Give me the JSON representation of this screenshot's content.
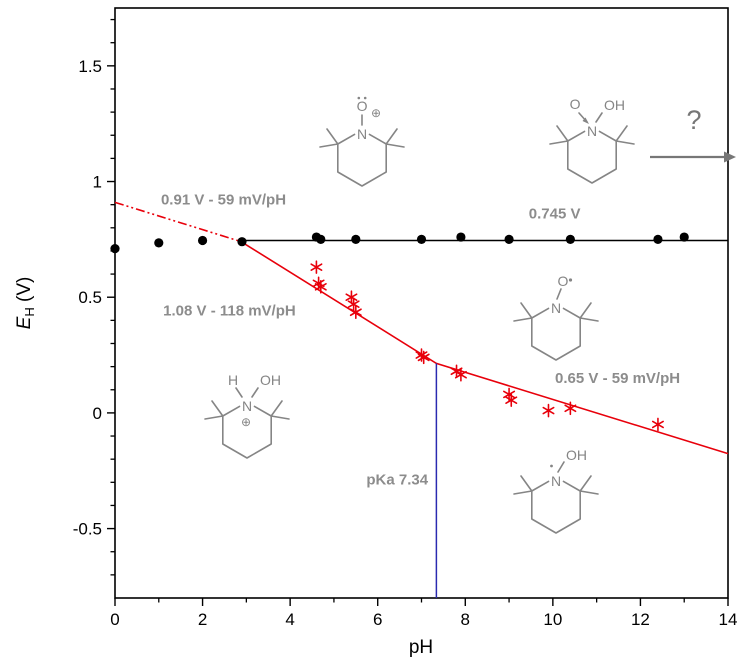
{
  "chart_data": {
    "type": "scatter",
    "title": "",
    "xlabel": "pH",
    "ylabel": "E_H (V)",
    "ylabel_parts": {
      "italic": "E",
      "sub": "H",
      "rest": " (V)"
    },
    "xlim": [
      0,
      14
    ],
    "ylim": [
      -0.8,
      1.75
    ],
    "grid": false,
    "legend": "none",
    "colors": {
      "red": "#e8000b",
      "black": "#000000",
      "blue": "#2a2ab0",
      "gray_text": "#8c8c8c",
      "gray_structure": "#858585"
    },
    "x_ticks": {
      "values": [
        0,
        2,
        4,
        6,
        8,
        10,
        12,
        14
      ],
      "labels": [
        "0",
        "2",
        "4",
        "6",
        "8",
        "10",
        "12",
        "14"
      ],
      "minor_step": 1
    },
    "y_ticks": {
      "values": [
        -0.5,
        0,
        0.5,
        1,
        1.5
      ],
      "labels": [
        "-0.5",
        "0",
        "0.5",
        "1",
        "1.5"
      ],
      "minor_step": 0.1
    },
    "series": [
      {
        "name": "black-circle-points",
        "marker": "circle",
        "color": "#000000",
        "points": [
          [
            0,
            0.71
          ],
          [
            1,
            0.735
          ],
          [
            2,
            0.745
          ],
          [
            2.9,
            0.74
          ],
          [
            4.6,
            0.76
          ],
          [
            4.7,
            0.75
          ],
          [
            5.5,
            0.75
          ],
          [
            7,
            0.75
          ],
          [
            7.9,
            0.76
          ],
          [
            9,
            0.75
          ],
          [
            10.4,
            0.75
          ],
          [
            12.4,
            0.75
          ],
          [
            13,
            0.76
          ]
        ]
      },
      {
        "name": "red-star-points",
        "marker": "star",
        "color": "#e8000b",
        "points": [
          [
            4.6,
            0.63
          ],
          [
            4.65,
            0.56
          ],
          [
            4.7,
            0.545
          ],
          [
            5.4,
            0.5
          ],
          [
            5.45,
            0.47
          ],
          [
            5.5,
            0.435
          ],
          [
            7.0,
            0.25
          ],
          [
            7.05,
            0.24
          ],
          [
            7.8,
            0.18
          ],
          [
            7.9,
            0.165
          ],
          [
            9.0,
            0.08
          ],
          [
            9.05,
            0.055
          ],
          [
            9.9,
            0.01
          ],
          [
            10.4,
            0.02
          ],
          [
            12.4,
            -0.05
          ]
        ]
      }
    ],
    "lines": [
      {
        "name": "black-plateau-line",
        "color": "#000000",
        "width": 1.5,
        "dash": "",
        "points": [
          [
            2.8,
            0.745
          ],
          [
            14,
            0.745
          ]
        ]
      },
      {
        "name": "red-dash-dot-line",
        "color": "#e8000b",
        "width": 1.6,
        "dash": "9 3 2 3 2 3",
        "points": [
          [
            0,
            0.91
          ],
          [
            2.8,
            0.745
          ]
        ]
      },
      {
        "name": "red-fit-line",
        "color": "#e8000b",
        "width": 1.6,
        "dash": "",
        "points": [
          [
            2.84,
            0.745
          ],
          [
            7.34,
            0.214
          ],
          [
            14,
            -0.176
          ]
        ]
      },
      {
        "name": "pka-vertical-line",
        "color": "#2a2ab0",
        "width": 1.5,
        "dash": "",
        "points": [
          [
            7.34,
            -0.8
          ],
          [
            7.34,
            0.214
          ]
        ]
      }
    ],
    "annotations": [
      {
        "name": "upper-slope-label",
        "text": "0.91 V - 59 mV/pH",
        "x": 1.05,
        "y": 0.9,
        "anchor": "start",
        "color": "#8c8c8c",
        "bold": true,
        "size": 15
      },
      {
        "name": "plateau-label",
        "text": "0.745 V",
        "x": 9.45,
        "y": 0.84,
        "anchor": "start",
        "color": "#8c8c8c",
        "bold": true,
        "size": 15
      },
      {
        "name": "mid-slope-label",
        "text": "1.08 V - 118 mV/pH",
        "x": 1.1,
        "y": 0.42,
        "anchor": "start",
        "color": "#8c8c8c",
        "bold": true,
        "size": 15
      },
      {
        "name": "lower-slope-label",
        "text": "0.65 V - 59 mV/pH",
        "x": 10.05,
        "y": 0.13,
        "anchor": "start",
        "color": "#8c8c8c",
        "bold": true,
        "size": 15
      },
      {
        "name": "pka-label",
        "text": "pKa 7.34",
        "x": 7.15,
        "y": -0.31,
        "anchor": "end",
        "color": "#8c8c8c",
        "bold": true,
        "size": 15
      }
    ]
  },
  "molecules": {
    "oxoammonium": {
      "n": "N",
      "o": "O",
      "charge": "⊕"
    },
    "adduct": {
      "n": "N",
      "o": "O",
      "oh": "OH"
    },
    "nitroxide": {
      "n": "N",
      "o": "O"
    },
    "hydroxylammonium": {
      "n": "N",
      "h": "H",
      "oh": "OH",
      "charge": "⊕"
    },
    "hydroxylamine": {
      "n": "N",
      "oh": "OH"
    }
  },
  "reaction": {
    "question_mark": "?"
  }
}
